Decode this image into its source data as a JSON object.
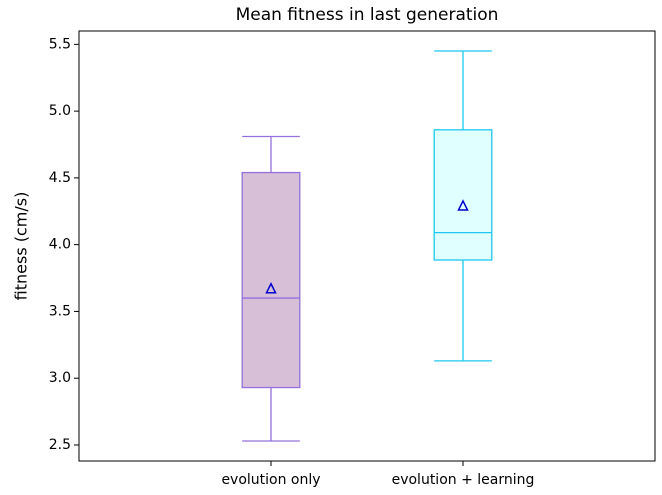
{
  "chart_data": {
    "type": "box",
    "title": "Mean fitness in last generation",
    "ylabel": "fitness (cm/s)",
    "categories": [
      "evolution only",
      "evolution + learning"
    ],
    "boxes": [
      {
        "whislo": 2.53,
        "q1": 2.93,
        "med": 3.6,
        "q3": 4.54,
        "whishi": 4.81,
        "mean": 3.67,
        "fill": "#d8bfd8",
        "edge": "#9370db"
      },
      {
        "whislo": 3.13,
        "q1": 3.885,
        "med": 4.09,
        "q3": 4.86,
        "whishi": 5.45,
        "mean": 4.29,
        "fill": "#e0ffff",
        "edge": "#1ec8f0"
      }
    ],
    "mean_color": "#0000cc",
    "ylim": [
      2.38,
      5.6
    ],
    "yticks": [
      2.5,
      {
        "value": 3.0,
        "label": "3.0"
      },
      3.5,
      {
        "value": 4.0,
        "label": "4.0"
      },
      4.5,
      {
        "value": 5.0,
        "label": "5.0"
      },
      5.5
    ]
  }
}
